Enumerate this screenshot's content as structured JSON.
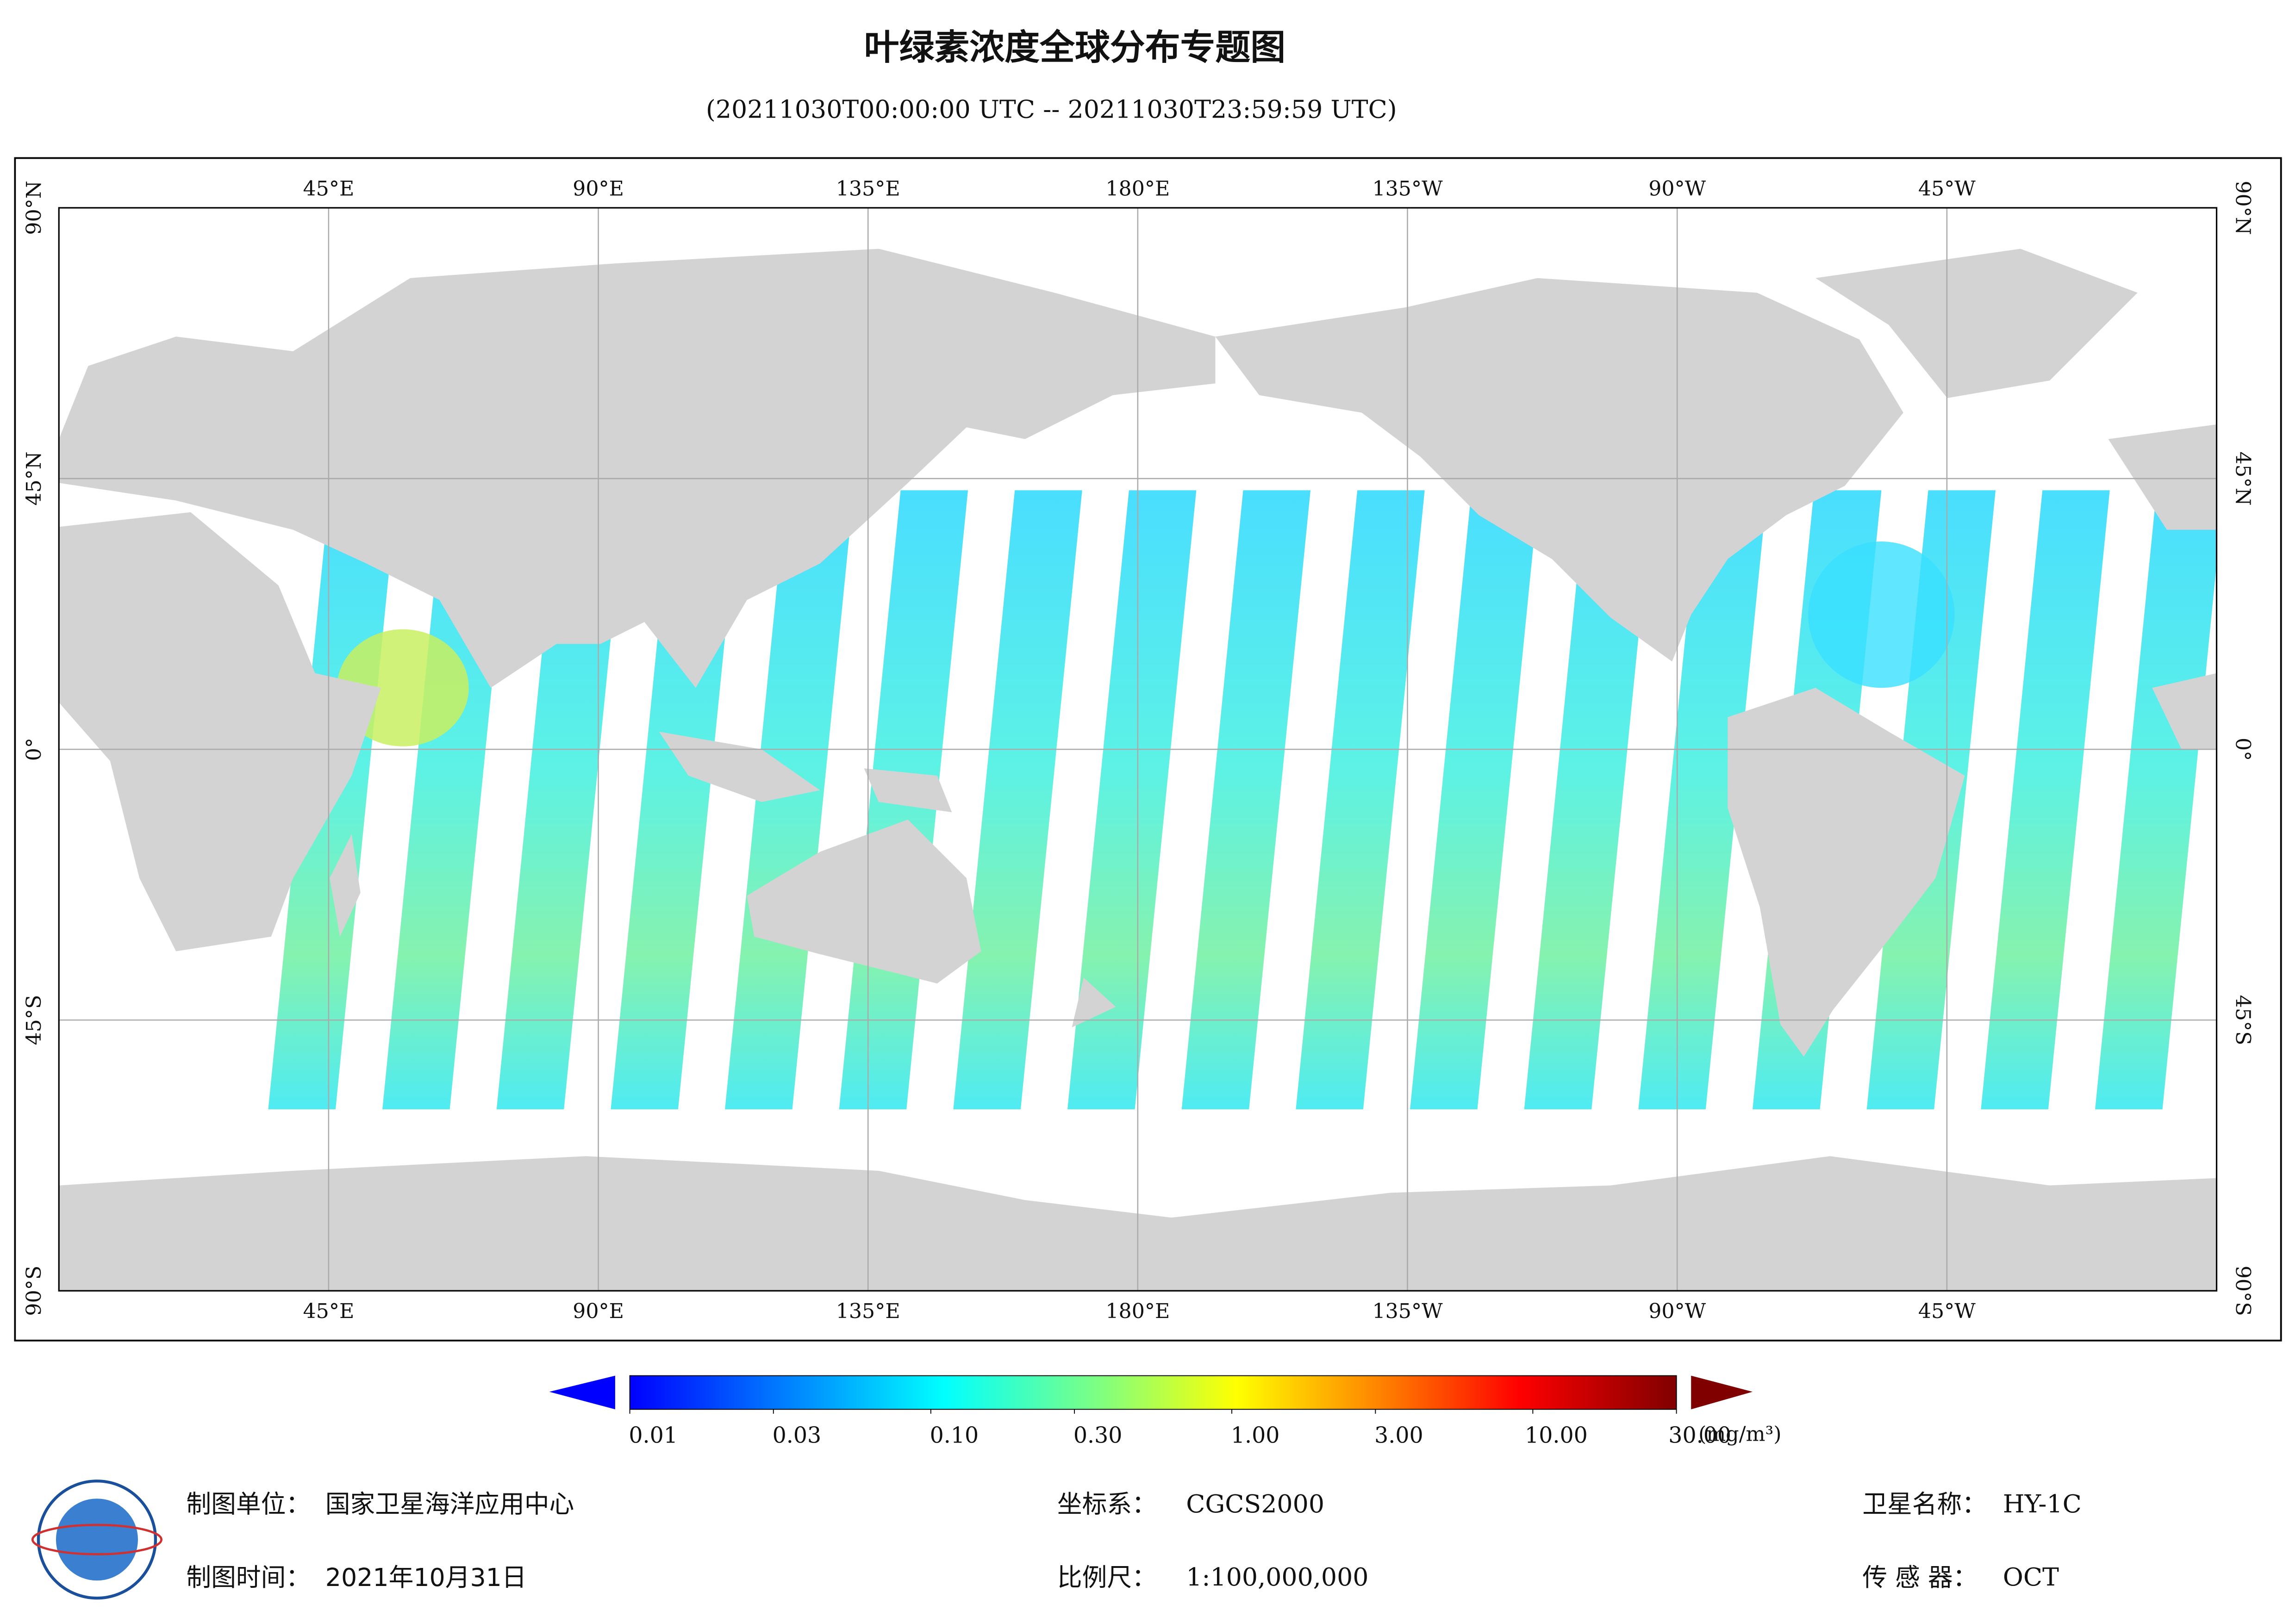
{
  "title": "叶绿素浓度全球分布专题图",
  "subtitle": "(20211030T00:00:00 UTC -- 20211030T23:59:59 UTC)",
  "map": {
    "xlim": [
      0,
      360
    ],
    "ylim": [
      -90,
      90
    ],
    "meridians": [
      {
        "value": 45,
        "label": "45°E"
      },
      {
        "value": 90,
        "label": "90°E"
      },
      {
        "value": 135,
        "label": "135°E"
      },
      {
        "value": 180,
        "label": "180°E"
      },
      {
        "value": 225,
        "label": "135°W"
      },
      {
        "value": 270,
        "label": "90°W"
      },
      {
        "value": 315,
        "label": "45°W"
      }
    ],
    "parallels": [
      {
        "value": 90,
        "label": "90°N"
      },
      {
        "value": 45,
        "label": "45°N"
      },
      {
        "value": 0,
        "label": "0°"
      },
      {
        "value": -45,
        "label": "45°S"
      },
      {
        "value": -90,
        "label": "90°S"
      }
    ]
  },
  "colorbar": {
    "log": true,
    "lim": [
      0.01,
      30
    ],
    "unit": "(mg/m³)",
    "ticks": [
      {
        "value": 0.01,
        "label": "0.01"
      },
      {
        "value": 0.03,
        "label": "0.03"
      },
      {
        "value": 0.1,
        "label": "0.10"
      },
      {
        "value": 0.3,
        "label": "0.30"
      },
      {
        "value": 1,
        "label": "1.00"
      },
      {
        "value": 3,
        "label": "3.00"
      },
      {
        "value": 10,
        "label": "10.00"
      },
      {
        "value": 30,
        "label": "30.00"
      }
    ]
  },
  "footer": {
    "unit_label": "制图单位：",
    "unit": "国家卫星海洋应用中心",
    "crs_label": "坐标系：",
    "crs": "CGCS2000",
    "satellite_label": "卫星名称：",
    "satellite": "HY-1C",
    "date_label": "制图时间：",
    "date": "2021年10月31日",
    "scale_label": "比例尺：",
    "scale": "1:100,000,000",
    "sensor_label": "传 感 器：",
    "sensor": "OCT"
  }
}
